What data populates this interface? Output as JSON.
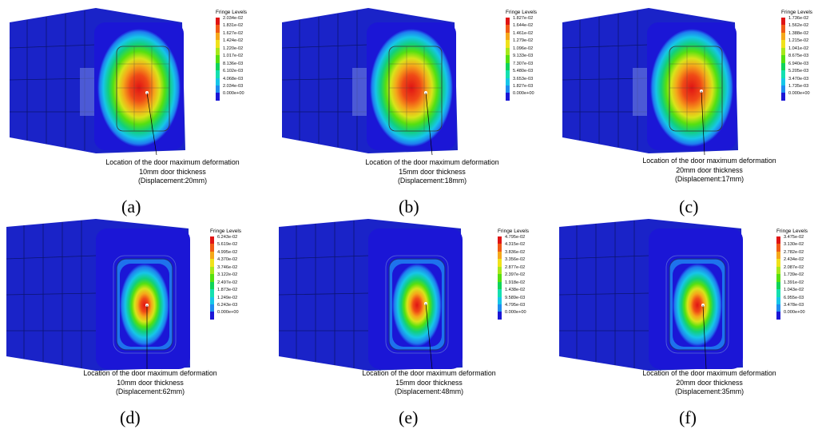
{
  "fringe_title": "Fringe Levels",
  "caption_location": "Location of  the door maximum deformation",
  "colors": [
    "#1b16d6",
    "#1f8cf0",
    "#16c6e8",
    "#14e0b0",
    "#10d45a",
    "#55e010",
    "#a8e81a",
    "#f0e21a",
    "#f5a81a",
    "#f05a16",
    "#e01414"
  ],
  "panels": [
    {
      "label": "(a)",
      "thickness": "10mm door thickness",
      "displacement": "(Displacement:20mm)",
      "fringe_values": [
        "2.034e-02",
        "1.831e-02",
        "1.627e-02",
        "1.424e-02",
        "1.220e-02",
        "1.017e-02",
        "8.136e-03",
        "6.102e-03",
        "4.068e-03",
        "2.034e-03",
        "0.000e+00"
      ]
    },
    {
      "label": "(b)",
      "thickness": "15mm door thickness",
      "displacement": "(Displacement:18mm)",
      "fringe_values": [
        "1.827e-02",
        "1.644e-02",
        "1.461e-02",
        "1.279e-02",
        "1.096e-02",
        "9.133e-03",
        "7.307e-03",
        "5.480e-03",
        "3.653e-03",
        "1.827e-03",
        "0.000e+00"
      ]
    },
    {
      "label": "(c)",
      "thickness": "20mm door thickness",
      "displacement": "(Displacement:17mm)",
      "fringe_values": [
        "1.736e-02",
        "1.562e-02",
        "1.388e-02",
        "1.215e-02",
        "1.041e-02",
        "8.675e-03",
        "6.940e-03",
        "5.205e-03",
        "3.470e-03",
        "1.735e-03",
        "0.000e+00"
      ]
    },
    {
      "label": "(d)",
      "thickness": "10mm door thickness",
      "displacement": "(Displacement:62mm)",
      "fringe_values": [
        "6.243e-02",
        "5.619e-02",
        "4.995e-02",
        "4.370e-02",
        "3.746e-02",
        "3.122e-02",
        "2.497e-02",
        "1.873e-02",
        "1.249e-02",
        "6.243e-03",
        "0.000e+00"
      ]
    },
    {
      "label": "(e)",
      "thickness": "15mm door thickness",
      "displacement": "(Displacement:48mm)",
      "fringe_values": [
        "4.795e-02",
        "4.315e-02",
        "3.836e-02",
        "3.356e-02",
        "2.877e-02",
        "2.397e-02",
        "1.918e-02",
        "1.438e-02",
        "9.589e-03",
        "4.795e-03",
        "0.000e+00"
      ]
    },
    {
      "label": "(f)",
      "thickness": "20mm door thickness",
      "displacement": "(Displacement:35mm)",
      "fringe_values": [
        "3.475e-02",
        "3.130e-02",
        "2.782e-02",
        "2.434e-02",
        "2.087e-02",
        "1.739e-02",
        "1.391e-02",
        "1.043e-02",
        "6.955e-03",
        "3.478e-03",
        "0.000e+00"
      ]
    }
  ]
}
